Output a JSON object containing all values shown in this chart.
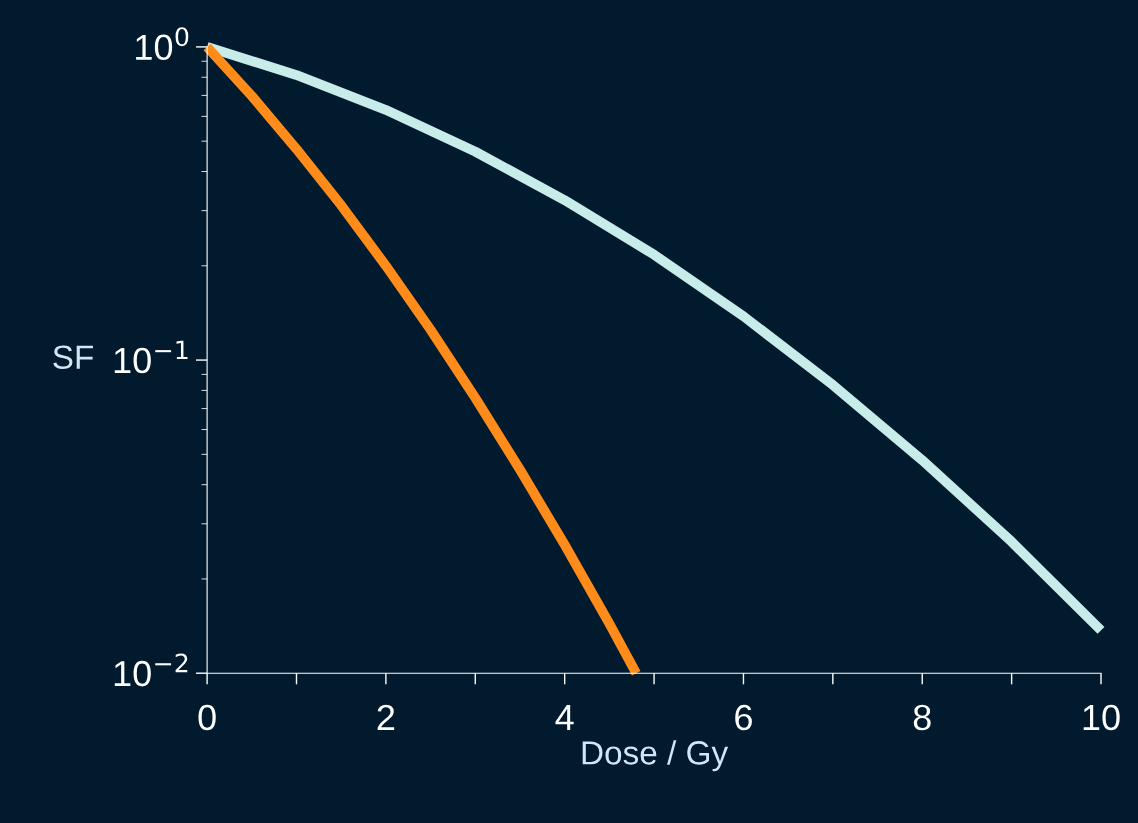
{
  "chart_data": {
    "type": "line",
    "xlabel": "Dose / Gy",
    "ylabel": "SF",
    "log": "y",
    "grid": false,
    "marker": "none",
    "line_style": "solid",
    "xlim": [
      0,
      10
    ],
    "ylim": [
      0.01,
      1
    ],
    "xticks": [
      0,
      {
        "value": 1,
        "label": null
      },
      2,
      {
        "value": 3,
        "label": null
      },
      4,
      {
        "value": 5,
        "label": null
      },
      6,
      {
        "value": 7,
        "label": null
      },
      8,
      {
        "value": 9,
        "label": null
      },
      10
    ],
    "yticks": [
      {
        "value": 0.01,
        "label": "10$^{−2}$"
      },
      {
        "value": 0.1,
        "label": "10$^{−1}$"
      },
      {
        "value": 1,
        "label": "10$^{0}$"
      }
    ],
    "series": [
      {
        "color": "#c8ecea",
        "x": [
          0,
          1,
          2,
          3,
          4,
          5,
          6,
          7,
          8,
          9,
          10
        ],
        "values": [
          1,
          0.813,
          0.629,
          0.463,
          0.324,
          0.217,
          0.138,
          0.0833,
          0.0479,
          0.0263,
          0.0137
        ]
      },
      {
        "color": "#ff8c1a",
        "x": [
          0,
          0.5,
          1,
          1.5,
          2,
          2.5,
          3,
          3.5,
          4,
          4.5,
          4.8
        ],
        "values": [
          1,
          0.697,
          0.472,
          0.312,
          0.2,
          0.125,
          0.0757,
          0.0447,
          0.0257,
          0.0144,
          0.01
        ]
      }
    ]
  }
}
